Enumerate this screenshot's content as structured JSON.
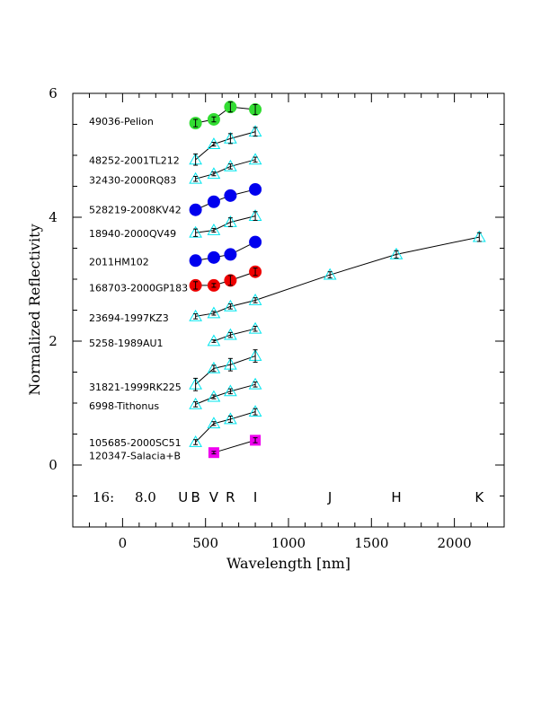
{
  "chart_data": {
    "type": "scatter",
    "xlabel": "Wavelength [nm]",
    "ylabel": "Normalized Reflectivity",
    "xlim": [
      -300,
      2300
    ],
    "ylim": [
      -1,
      6
    ],
    "xticks": [
      0,
      500,
      1000,
      1500,
      2000
    ],
    "yticks": [
      0,
      2,
      4,
      6
    ],
    "grid": false,
    "info_text": [
      "16:",
      "8.0"
    ],
    "bands": [
      {
        "name": "U",
        "x": 365
      },
      {
        "name": "B",
        "x": 440
      },
      {
        "name": "V",
        "x": 550
      },
      {
        "name": "R",
        "x": 650
      },
      {
        "name": "I",
        "x": 800
      },
      {
        "name": "J",
        "x": 1250
      },
      {
        "name": "H",
        "x": 1650
      },
      {
        "name": "K",
        "x": 2150
      }
    ],
    "series": [
      {
        "name": "49036-Pelion",
        "label_y": 5.55,
        "marker": "circle",
        "color": "#33dd33",
        "x": [
          440,
          550,
          650,
          800
        ],
        "y": [
          5.52,
          5.58,
          5.78,
          5.74
        ],
        "err": [
          0.06,
          0.04,
          0.08,
          0.08
        ]
      },
      {
        "name": "48252-2001TL212",
        "label_y": 4.92,
        "marker": "triangle",
        "color": "#00e5ee",
        "x": [
          440,
          550,
          650,
          800
        ],
        "y": [
          4.93,
          5.18,
          5.27,
          5.38
        ],
        "err": [
          0.09,
          0.03,
          0.08,
          0.07
        ]
      },
      {
        "name": "32430-2000RQ83",
        "label_y": 4.6,
        "marker": "triangle",
        "color": "#00e5ee",
        "x": [
          440,
          550,
          650,
          800
        ],
        "y": [
          4.62,
          4.7,
          4.82,
          4.93
        ],
        "err": [
          0.04,
          0.03,
          0.04,
          0.04
        ]
      },
      {
        "name": "528219-2008KV42",
        "label_y": 4.12,
        "marker": "circle",
        "color": "#0000ee",
        "x": [
          440,
          550,
          650,
          800
        ],
        "y": [
          4.12,
          4.25,
          4.35,
          4.45
        ],
        "err": [
          0.0,
          0.0,
          0.0,
          0.0
        ]
      },
      {
        "name": "18940-2000QV49",
        "label_y": 3.74,
        "marker": "triangle",
        "color": "#00e5ee",
        "x": [
          440,
          550,
          650,
          800
        ],
        "y": [
          3.75,
          3.79,
          3.92,
          4.02
        ],
        "err": [
          0.06,
          0.03,
          0.07,
          0.07
        ]
      },
      {
        "name": "2011HM102",
        "label_y": 3.28,
        "marker": "circle",
        "color": "#0000ee",
        "x": [
          440,
          550,
          650,
          800
        ],
        "y": [
          3.3,
          3.35,
          3.4,
          3.6
        ],
        "err": [
          0.0,
          0.0,
          0.0,
          0.0
        ]
      },
      {
        "name": "168703-2000GP183",
        "label_y": 2.86,
        "marker": "circle",
        "color": "#ee0000",
        "x": [
          440,
          550,
          650,
          800
        ],
        "y": [
          2.9,
          2.9,
          2.98,
          3.12
        ],
        "err": [
          0.06,
          0.03,
          0.08,
          0.06
        ]
      },
      {
        "name": "23694-1997KZ3",
        "label_y": 2.38,
        "marker": "triangle",
        "color": "#00e5ee",
        "x": [
          440,
          550,
          650,
          800,
          1250,
          1650,
          2150
        ],
        "y": [
          2.4,
          2.45,
          2.56,
          2.66,
          3.07,
          3.4,
          3.68
        ],
        "err": [
          0.04,
          0.03,
          0.04,
          0.04,
          0.05,
          0.06,
          0.07
        ]
      },
      {
        "name": "5258-1989AU1",
        "label_y": 1.97,
        "marker": "triangle",
        "color": "#00e5ee",
        "x": [
          550,
          650,
          800
        ],
        "y": [
          2.0,
          2.1,
          2.2
        ],
        "err": [
          0.02,
          0.04,
          0.04
        ]
      },
      {
        "name": "31821-1999RK225",
        "label_y": 1.26,
        "marker": "triangle",
        "color": "#00e5ee",
        "x": [
          440,
          550,
          650,
          800
        ],
        "y": [
          1.3,
          1.56,
          1.62,
          1.76
        ],
        "err": [
          0.1,
          0.05,
          0.1,
          0.1
        ]
      },
      {
        "name": "6998-Tithonus",
        "label_y": 0.96,
        "marker": "triangle",
        "color": "#00e5ee",
        "x": [
          440,
          550,
          650,
          800
        ],
        "y": [
          0.98,
          1.1,
          1.19,
          1.3
        ],
        "err": [
          0.04,
          0.03,
          0.04,
          0.04
        ]
      },
      {
        "name": "105685-2000SC51",
        "label_y": 0.36,
        "marker": "triangle",
        "color": "#00e5ee",
        "x": [
          440,
          550,
          650,
          800
        ],
        "y": [
          0.37,
          0.67,
          0.74,
          0.86
        ],
        "err": [
          0.04,
          0.03,
          0.05,
          0.05
        ]
      },
      {
        "name": "120347-Salacia+B",
        "label_y": 0.15,
        "marker": "square",
        "color": "#ee00ee",
        "x": [
          550,
          800
        ],
        "y": [
          0.2,
          0.4
        ],
        "err": [
          0.02,
          0.04
        ]
      }
    ]
  }
}
